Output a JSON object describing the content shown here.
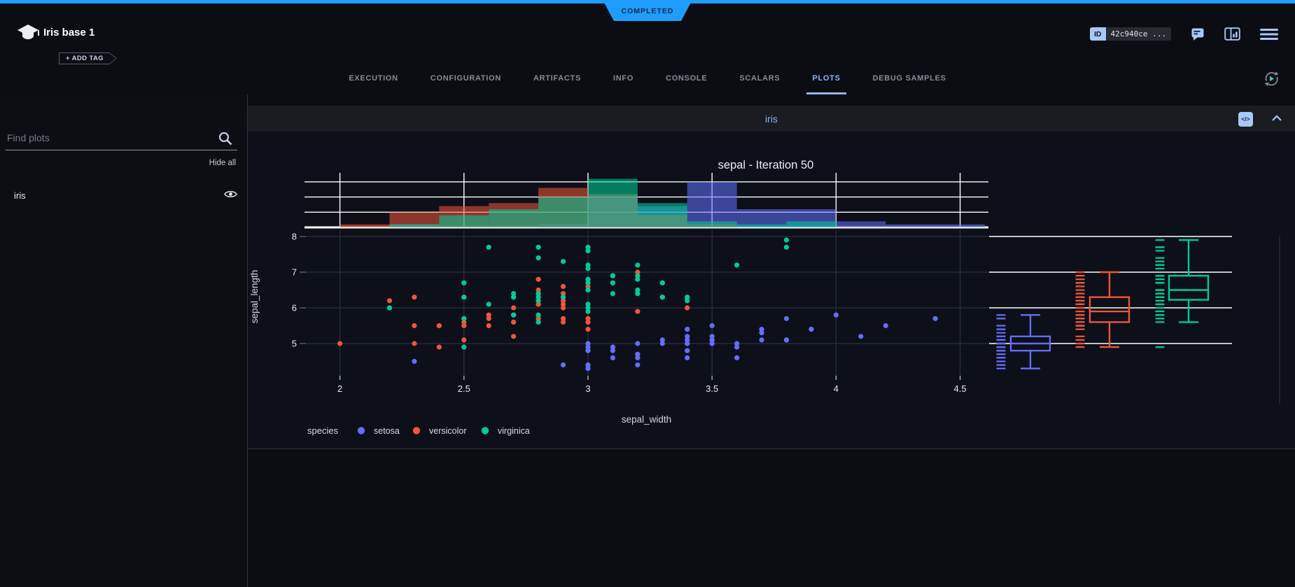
{
  "header": {
    "status": "COMPLETED",
    "title": "Iris base 1",
    "add_tag_label": "+ ADD TAG",
    "id_label": "ID",
    "id_value": "42c940ce ...",
    "accent_color": "#1e9dff"
  },
  "tabs": {
    "items": [
      {
        "label": "EXECUTION",
        "active": false
      },
      {
        "label": "CONFIGURATION",
        "active": false
      },
      {
        "label": "ARTIFACTS",
        "active": false
      },
      {
        "label": "INFO",
        "active": false
      },
      {
        "label": "CONSOLE",
        "active": false
      },
      {
        "label": "SCALARS",
        "active": false
      },
      {
        "label": "PLOTS",
        "active": true
      },
      {
        "label": "DEBUG SAMPLES",
        "active": false
      }
    ],
    "active_color": "#8fb5f2"
  },
  "sidebar": {
    "search_placeholder": "Find plots",
    "hide_all_label": "Hide all",
    "items": [
      {
        "label": "iris",
        "visible": true
      }
    ]
  },
  "plot_panel": {
    "title": "iris",
    "embed_icon_glyph": "</>"
  },
  "chart_data": {
    "type": "scatter",
    "title": "sepal - Iteration 50",
    "xlabel": "sepal_width",
    "ylabel": "sepal_length",
    "legend_title": "species",
    "legend_position": "bottom-left",
    "x_ticks": [
      2,
      2.5,
      3,
      3.5,
      4,
      4.5
    ],
    "y_ticks": [
      5,
      6,
      7,
      8
    ],
    "xlim": [
      1.86,
      4.62
    ],
    "ylim": [
      4.1,
      8.18
    ],
    "grid": true,
    "marginal_top": "histogram",
    "marginal_right": "box",
    "histogram": {
      "bin_start": 2.0,
      "bin_width": 0.2,
      "bin_count": 13,
      "gridline_counts": [
        5,
        10,
        15
      ],
      "opacity": 0.57
    },
    "series": [
      {
        "name": "setosa",
        "color": "#636efa",
        "x": [
          3.5,
          3.0,
          3.2,
          3.1,
          3.6,
          3.9,
          3.4,
          3.4,
          2.9,
          3.1,
          3.7,
          3.4,
          3.0,
          3.0,
          4.0,
          4.4,
          3.9,
          3.5,
          3.8,
          3.8,
          3.4,
          3.7,
          3.6,
          3.3,
          3.4,
          3.0,
          3.4,
          3.5,
          3.4,
          3.2,
          3.1,
          3.4,
          4.1,
          4.2,
          3.1,
          3.2,
          3.5,
          3.6,
          3.0,
          3.4,
          3.5,
          2.3,
          3.2,
          3.5,
          3.8,
          3.0,
          3.8,
          3.2,
          3.7,
          3.3
        ],
        "y": [
          5.1,
          4.9,
          4.7,
          4.6,
          5.0,
          5.4,
          4.6,
          5.0,
          4.4,
          4.9,
          5.4,
          4.8,
          4.8,
          4.3,
          5.8,
          5.7,
          5.4,
          5.1,
          5.7,
          5.1,
          5.4,
          5.1,
          4.6,
          5.1,
          4.8,
          5.0,
          5.0,
          5.2,
          5.2,
          4.7,
          4.8,
          5.4,
          5.2,
          5.5,
          4.9,
          5.0,
          5.5,
          4.9,
          4.4,
          5.1,
          5.0,
          4.5,
          4.4,
          5.0,
          5.1,
          4.8,
          5.1,
          4.6,
          5.3,
          5.0
        ]
      },
      {
        "name": "versicolor",
        "color": "#ef553b",
        "x": [
          3.2,
          3.2,
          3.1,
          2.3,
          2.8,
          2.8,
          3.3,
          2.4,
          2.9,
          2.7,
          2.0,
          3.0,
          2.2,
          2.9,
          2.9,
          3.1,
          3.0,
          2.7,
          2.2,
          2.5,
          3.2,
          2.8,
          2.5,
          2.8,
          2.9,
          3.0,
          2.8,
          3.0,
          2.9,
          2.6,
          2.4,
          2.4,
          2.7,
          2.7,
          3.0,
          3.4,
          3.1,
          2.3,
          3.0,
          2.5,
          2.6,
          3.0,
          2.6,
          2.3,
          2.7,
          3.0,
          2.9,
          2.9,
          2.5,
          2.8
        ],
        "y": [
          7.0,
          6.4,
          6.9,
          5.5,
          6.5,
          5.7,
          6.3,
          4.9,
          6.6,
          5.2,
          5.0,
          5.9,
          6.0,
          6.1,
          5.6,
          6.7,
          5.6,
          5.8,
          6.2,
          5.6,
          5.9,
          6.1,
          6.3,
          6.1,
          6.4,
          6.6,
          6.8,
          6.7,
          6.0,
          5.7,
          5.5,
          5.5,
          5.8,
          6.0,
          5.4,
          6.0,
          6.7,
          6.3,
          5.6,
          5.5,
          5.5,
          6.1,
          5.8,
          5.0,
          5.6,
          5.7,
          5.7,
          6.2,
          5.1,
          5.7
        ]
      },
      {
        "name": "virginica",
        "color": "#00cc96",
        "x": [
          3.3,
          2.7,
          3.0,
          2.9,
          3.0,
          3.0,
          2.5,
          2.9,
          2.5,
          3.6,
          3.2,
          2.7,
          3.0,
          2.5,
          2.8,
          3.2,
          3.0,
          3.8,
          2.6,
          2.2,
          3.2,
          2.8,
          2.8,
          2.7,
          3.3,
          3.2,
          2.8,
          3.0,
          2.8,
          3.0,
          2.8,
          3.8,
          2.8,
          2.8,
          2.6,
          3.0,
          3.4,
          3.1,
          3.0,
          3.1,
          3.1,
          3.1,
          2.7,
          3.2,
          3.3,
          3.0,
          2.5,
          3.0,
          3.4,
          3.0
        ],
        "y": [
          6.3,
          5.8,
          7.1,
          6.3,
          6.5,
          7.6,
          4.9,
          7.3,
          6.7,
          7.2,
          6.5,
          6.4,
          6.8,
          5.7,
          5.8,
          6.4,
          6.5,
          7.7,
          7.7,
          6.0,
          6.9,
          5.6,
          7.7,
          6.3,
          6.7,
          7.2,
          6.2,
          6.1,
          6.4,
          7.2,
          7.4,
          7.9,
          6.4,
          6.3,
          6.1,
          7.7,
          6.3,
          6.4,
          6.0,
          6.9,
          6.7,
          6.9,
          5.8,
          6.8,
          6.7,
          6.7,
          6.3,
          6.5,
          6.2,
          5.9
        ]
      }
    ],
    "box_stats": [
      {
        "name": "setosa",
        "min": 4.3,
        "q1": 4.8,
        "median": 5.0,
        "q3": 5.2,
        "max": 5.8
      },
      {
        "name": "versicolor",
        "min": 4.9,
        "q1": 5.6,
        "median": 5.9,
        "q3": 6.3,
        "max": 7.0
      },
      {
        "name": "virginica",
        "min": 5.6,
        "q1": 6.225,
        "median": 6.5,
        "q3": 6.9,
        "max": 7.9
      }
    ]
  }
}
